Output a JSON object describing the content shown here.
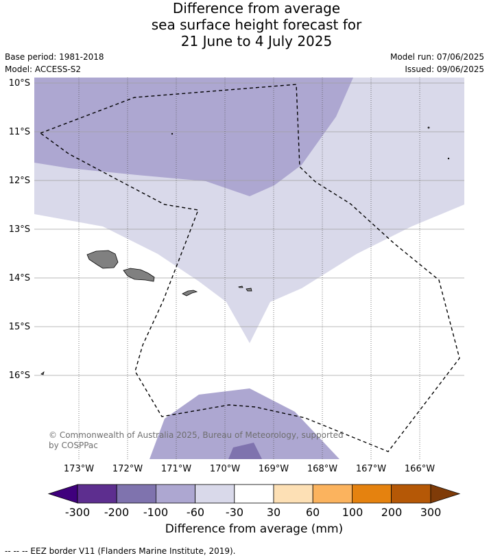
{
  "title": {
    "line1": "Difference from average",
    "line2": "sea surface height forecast for",
    "line3": "21 June to 4 July 2025"
  },
  "meta": {
    "base_period": "Base period: 1981-2018",
    "model": "Model: ACCESS-S2",
    "model_run": "Model run: 07/06/2025",
    "issued": "Issued: 09/06/2025"
  },
  "map": {
    "lat_labels": [
      "10°S",
      "11°S",
      "12°S",
      "13°S",
      "14°S",
      "15°S",
      "16°S"
    ],
    "lon_labels": [
      "173°W",
      "172°W",
      "171°W",
      "170°W",
      "169°W",
      "168°W",
      "167°W",
      "166°W"
    ],
    "copyright": "© Commonwealth of Australia 2025, Bureau of Meteorology, supported by COSPPac",
    "copyright_line1": "© Commonwealth of Australia 2025, Bureau of Meteorology, supported",
    "copyright_line2": "by COSPPac",
    "land_color": "#808080",
    "eez_color": "#000000"
  },
  "colorbar": {
    "title": "Difference from average (mm)",
    "tick_labels": [
      "-300",
      "-200",
      "-100",
      "-60",
      "-30",
      "30",
      "60",
      "100",
      "200",
      "300"
    ],
    "colors": [
      "#3f007d",
      "#5d2e8f",
      "#7f73ae",
      "#ada7d1",
      "#d9d9ea",
      "#ffffff",
      "#fde0b5",
      "#fbb35e",
      "#e5820f",
      "#b55806",
      "#7f3b08"
    ]
  },
  "footnote": "--  --  -- EEZ border V11 (Flanders Marine Institute, 2019)."
}
